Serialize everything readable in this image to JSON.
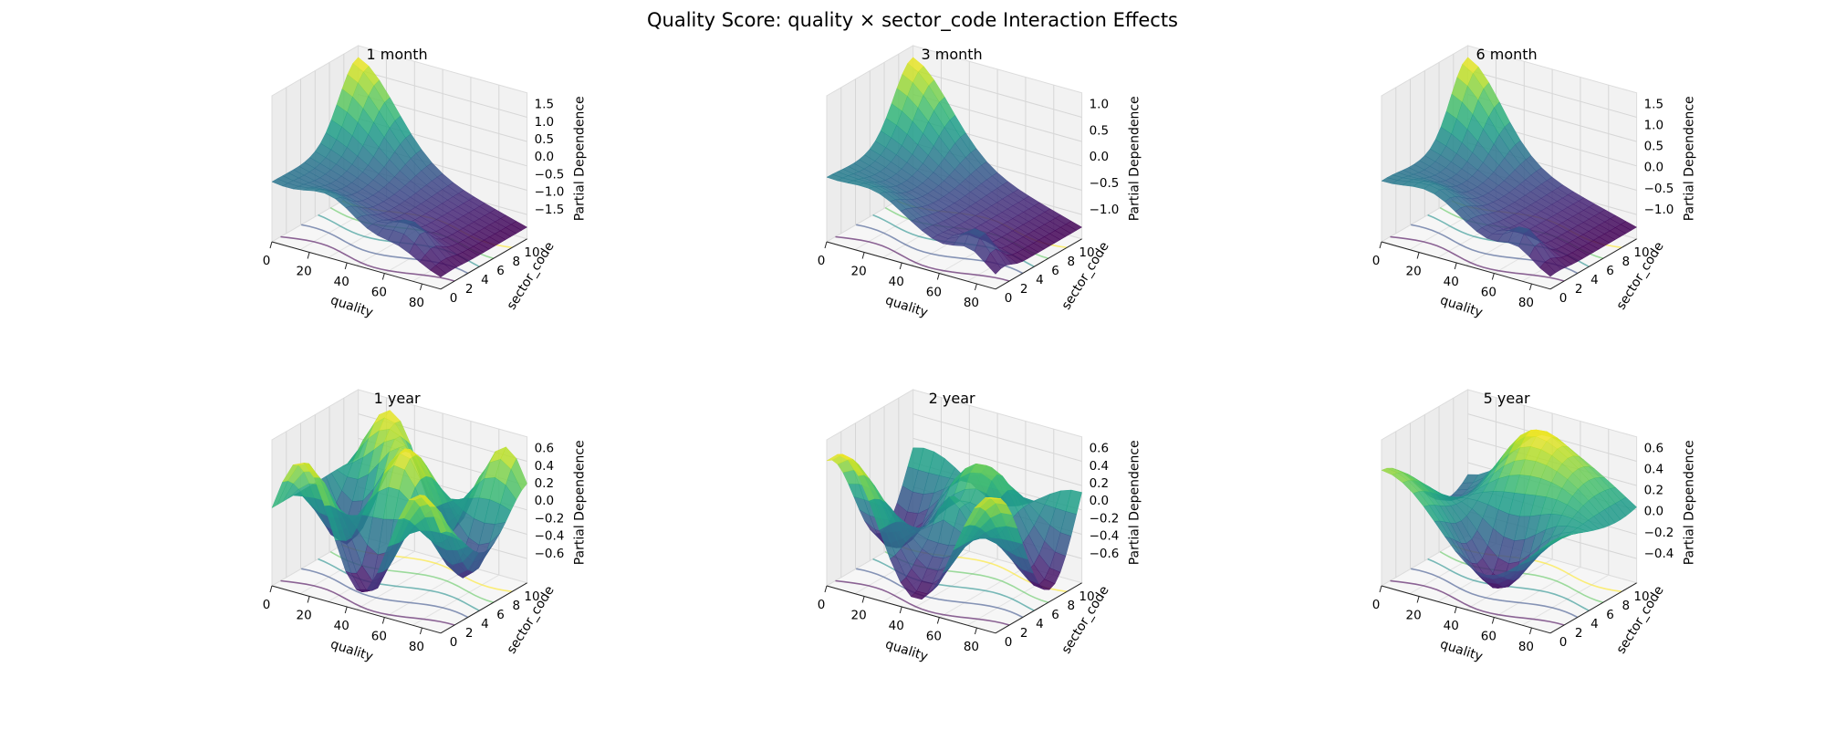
{
  "figure": {
    "title": "Quality Score: quality × sector_code Interaction Effects"
  },
  "chart_data": [
    {
      "type": "surface",
      "title": "1 month",
      "xlabel": "quality",
      "ylabel": "sector_code",
      "zlabel": "Partial Dependence",
      "xticks": [
        "0",
        "20",
        "40",
        "60",
        "80"
      ],
      "xlim": [
        0,
        90
      ],
      "yticks": [
        "0",
        "2",
        "4",
        "6",
        "8",
        "10"
      ],
      "ylim": [
        0,
        11
      ],
      "zticks": [
        "−1.5",
        "−1.0",
        "−0.5",
        "0.0",
        "0.5",
        "1.0",
        "1.5"
      ],
      "zlim": [
        -1.7,
        2.0
      ],
      "colormap": "viridis",
      "contours": "floor",
      "peaks": [
        [
          0,
          10,
          1.9
        ]
      ]
    },
    {
      "type": "surface",
      "title": "3 month",
      "xlabel": "quality",
      "ylabel": "sector_code",
      "zlabel": "Partial Dependence",
      "xticks": [
        "0",
        "20",
        "40",
        "60",
        "80"
      ],
      "xlim": [
        0,
        90
      ],
      "yticks": [
        "0",
        "2",
        "4",
        "6",
        "8",
        "10"
      ],
      "ylim": [
        0,
        11
      ],
      "zticks": [
        "−1.0",
        "−0.5",
        "0.0",
        "0.5",
        "1.0"
      ],
      "zlim": [
        -1.15,
        1.35
      ],
      "colormap": "viridis",
      "contours": "floor",
      "peaks": [
        [
          0,
          10,
          1.3
        ]
      ]
    },
    {
      "type": "surface",
      "title": "6 month",
      "xlabel": "quality",
      "ylabel": "sector_code",
      "zlabel": "Partial Dependence",
      "xticks": [
        "0",
        "20",
        "40",
        "60",
        "80"
      ],
      "xlim": [
        0,
        90
      ],
      "yticks": [
        "0",
        "2",
        "4",
        "6",
        "8",
        "10"
      ],
      "ylim": [
        0,
        11
      ],
      "zticks": [
        "−1.0",
        "−0.5",
        "0.0",
        "0.5",
        "1.0",
        "1.5"
      ],
      "zlim": [
        -1.1,
        1.6
      ],
      "colormap": "viridis",
      "contours": "floor",
      "peaks": [
        [
          0,
          10,
          1.5
        ]
      ]
    },
    {
      "type": "surface",
      "title": "1 year",
      "xlabel": "quality",
      "ylabel": "sector_code",
      "zlabel": "Partial Dependence",
      "xticks": [
        "0",
        "20",
        "40",
        "60",
        "80"
      ],
      "xlim": [
        0,
        90
      ],
      "yticks": [
        "0",
        "2",
        "4",
        "6",
        "8",
        "10"
      ],
      "ylim": [
        0,
        11
      ],
      "zticks": [
        "−0.6",
        "−0.4",
        "−0.2",
        "0.0",
        "0.2",
        "0.4",
        "0.6"
      ],
      "zlim": [
        -0.65,
        0.75
      ],
      "colormap": "viridis",
      "contours": "floor",
      "peaks": [
        [
          30,
          8,
          0.7
        ]
      ]
    },
    {
      "type": "surface",
      "title": "2 year",
      "xlabel": "quality",
      "ylabel": "sector_code",
      "zlabel": "Partial Dependence",
      "xticks": [
        "0",
        "20",
        "40",
        "60",
        "80"
      ],
      "xlim": [
        0,
        90
      ],
      "yticks": [
        "0",
        "2",
        "4",
        "6",
        "8",
        "10"
      ],
      "ylim": [
        0,
        11
      ],
      "zticks": [
        "−0.6",
        "−0.4",
        "−0.2",
        "0.0",
        "0.2",
        "0.4",
        "0.6"
      ],
      "zlim": [
        -0.65,
        0.62
      ],
      "colormap": "viridis",
      "contours": "floor",
      "peaks": [
        [
          40,
          5,
          0.35
        ]
      ]
    },
    {
      "type": "surface",
      "title": "5 year",
      "xlabel": "quality",
      "ylabel": "sector_code",
      "zlabel": "Partial Dependence",
      "xticks": [
        "0",
        "20",
        "40",
        "60",
        "80"
      ],
      "xlim": [
        0,
        90
      ],
      "yticks": [
        "0",
        "2",
        "4",
        "6",
        "8",
        "10"
      ],
      "ylim": [
        0,
        11
      ],
      "zticks": [
        "−0.4",
        "−0.2",
        "0.0",
        "0.2",
        "0.4",
        "0.6"
      ],
      "zlim": [
        -0.5,
        0.7
      ],
      "colormap": "viridis",
      "contours": "floor",
      "peaks": [
        [
          45,
          8,
          0.6
        ]
      ]
    }
  ]
}
